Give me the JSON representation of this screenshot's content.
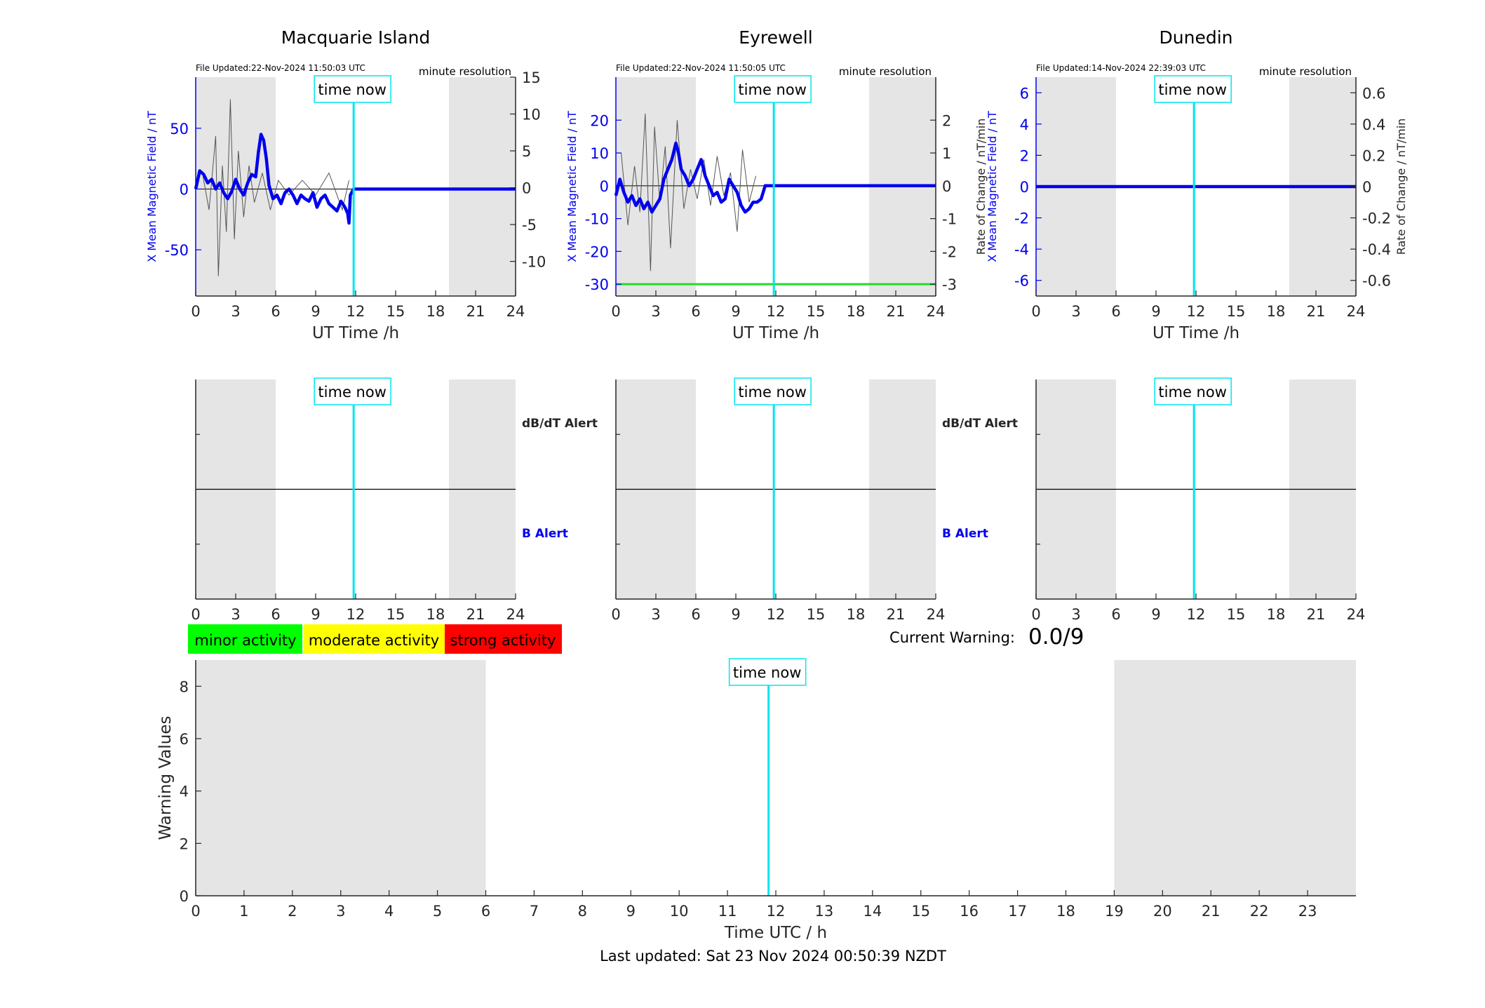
{
  "page": {
    "last_updated": "Last updated: Sat 23 Nov 2024 00:50:39 NZDT",
    "current_warning_label": "Current Warning:",
    "current_warning_value": "0.0/9"
  },
  "legend": {
    "minor": "minor activity",
    "moderate": "moderate activity",
    "strong": "strong activity",
    "colors": {
      "minor": "#00ff00",
      "moderate": "#ffff00",
      "strong": "#ff0000"
    }
  },
  "colors": {
    "field_trace": "#0000ee",
    "rate_trace": "#555555",
    "time_now": "#00e5ee",
    "threshold": "#22dd22",
    "night_shade": "#e5e5e5"
  },
  "chart_data": [
    {
      "id": "macquarie",
      "type": "line",
      "title": "Macquarie Island",
      "file_updated": "File Updated:22-Nov-2024 11:50:03 UTC",
      "resolution": "minute resolution",
      "xlabel": "UT Time /h",
      "ylabel_left": "X Mean Magnetic Field / nT",
      "ylabel_right": "",
      "xlim": [
        0,
        24
      ],
      "xticks": [
        "0",
        "3",
        "6",
        "9",
        "12",
        "15",
        "18",
        "21",
        "24"
      ],
      "ylim_left": [
        -88,
        92
      ],
      "yticks_left": [
        "-50",
        "0",
        "50"
      ],
      "ylim_right": [
        -14.7,
        15
      ],
      "yticks_right": [
        "-10",
        "-5",
        "0",
        "5",
        "10",
        "15"
      ],
      "shaded": [
        [
          0,
          6
        ],
        [
          19,
          24
        ]
      ],
      "time_now": 11.85,
      "time_now_label": "time now",
      "field": {
        "x": [
          0,
          0.3,
          0.6,
          0.9,
          1.2,
          1.5,
          1.8,
          2.1,
          2.4,
          2.7,
          3.0,
          3.3,
          3.6,
          3.9,
          4.2,
          4.5,
          4.7,
          4.9,
          5.1,
          5.3,
          5.5,
          5.8,
          6.1,
          6.4,
          6.7,
          7.0,
          7.3,
          7.6,
          7.9,
          8.2,
          8.5,
          8.8,
          9.1,
          9.4,
          9.7,
          10.0,
          10.3,
          10.6,
          10.9,
          11.2,
          11.4,
          11.5,
          11.6,
          11.85,
          14,
          18,
          21,
          24
        ],
        "y": [
          0,
          15,
          12,
          5,
          8,
          0,
          5,
          -3,
          -8,
          -2,
          8,
          0,
          -5,
          5,
          12,
          10,
          30,
          45,
          40,
          25,
          3,
          -8,
          -5,
          -12,
          -3,
          0,
          -5,
          -12,
          -5,
          -8,
          -10,
          -3,
          -15,
          -8,
          -5,
          -12,
          -15,
          -18,
          -10,
          -15,
          -20,
          -28,
          -5,
          0,
          0,
          0,
          0,
          0
        ]
      },
      "rate": {
        "x": [
          0.5,
          1.0,
          1.5,
          1.7,
          2.0,
          2.3,
          2.6,
          2.9,
          3.2,
          3.6,
          4.0,
          4.4,
          5.0,
          5.6,
          6.2,
          7.0,
          8.0,
          9.0,
          10.0,
          11.0,
          11.5
        ],
        "y": [
          2,
          -3,
          7,
          -12,
          3,
          -6,
          12,
          -7,
          5,
          -4,
          3,
          -2,
          2,
          -3,
          1,
          -1,
          1,
          -1,
          2,
          -3,
          1
        ]
      }
    },
    {
      "id": "eyrewell",
      "type": "line",
      "title": "Eyrewell",
      "file_updated": "File Updated:22-Nov-2024 11:50:05 UTC",
      "resolution": "minute resolution",
      "xlabel": "UT Time /h",
      "ylabel_left": "X Mean Magnetic Field / nT",
      "ylabel_right": "Rate of Change / nT/min",
      "xlim": [
        0,
        24
      ],
      "xticks": [
        "0",
        "3",
        "6",
        "9",
        "12",
        "15",
        "18",
        "21",
        "24"
      ],
      "ylim_left": [
        -33.6,
        33.1
      ],
      "yticks_left": [
        "-30",
        "-20",
        "-10",
        "0",
        "10",
        "20"
      ],
      "ylim_right": [
        -3.36,
        3.31
      ],
      "yticks_right": [
        "-3",
        "-2",
        "-1",
        "0",
        "1",
        "2"
      ],
      "shaded": [
        [
          0,
          6
        ],
        [
          19,
          24
        ]
      ],
      "time_now": 11.85,
      "time_now_label": "time now",
      "threshold": -30,
      "field": {
        "x": [
          0,
          0.3,
          0.6,
          0.9,
          1.2,
          1.5,
          1.8,
          2.1,
          2.4,
          2.7,
          3.0,
          3.3,
          3.6,
          3.9,
          4.2,
          4.5,
          4.7,
          4.9,
          5.2,
          5.5,
          5.8,
          6.1,
          6.4,
          6.7,
          7.0,
          7.3,
          7.6,
          7.9,
          8.2,
          8.5,
          8.8,
          9.1,
          9.4,
          9.7,
          10.0,
          10.3,
          10.6,
          10.9,
          11.2,
          11.85,
          14,
          18,
          21,
          24
        ],
        "y": [
          -3,
          2,
          -2,
          -5,
          -3,
          -6,
          -4,
          -7,
          -5,
          -8,
          -6,
          -4,
          2,
          5,
          8,
          13,
          10,
          5,
          3,
          0,
          2,
          5,
          8,
          3,
          0,
          -3,
          -2,
          -5,
          -4,
          2,
          0,
          -2,
          -6,
          -8,
          -7,
          -5,
          -5,
          -4,
          0,
          0,
          0,
          0,
          0,
          0
        ]
      },
      "rate": {
        "x": [
          0.4,
          0.9,
          1.4,
          1.8,
          2.2,
          2.6,
          2.9,
          3.3,
          3.7,
          4.1,
          4.6,
          5.1,
          5.6,
          6.1,
          6.6,
          7.1,
          7.6,
          8.1,
          8.6,
          9.1,
          9.5,
          10.0,
          10.5
        ],
        "y": [
          1.0,
          -1.2,
          0.6,
          -0.8,
          2.2,
          -2.6,
          1.8,
          -0.5,
          1.2,
          -1.9,
          2.0,
          -0.7,
          0.5,
          -0.4,
          0.8,
          -0.6,
          0.9,
          -0.3,
          0.4,
          -1.4,
          1.1,
          -0.5,
          0.3
        ]
      }
    },
    {
      "id": "dunedin",
      "type": "line",
      "title": "Dunedin",
      "file_updated": "File Updated:14-Nov-2024 22:39:03 UTC",
      "resolution": "minute resolution",
      "xlabel": "UT Time /h",
      "ylabel_left": "X Mean Magnetic Field / nT",
      "ylabel_right": "Rate of Change / nT/min",
      "xlim": [
        0,
        24
      ],
      "xticks": [
        "0",
        "3",
        "6",
        "9",
        "12",
        "15",
        "18",
        "21",
        "24"
      ],
      "ylim_left": [
        -7,
        7
      ],
      "yticks_left": [
        "-6",
        "-4",
        "-2",
        "0",
        "2",
        "4",
        "6"
      ],
      "ylim_right": [
        -0.7,
        0.7
      ],
      "yticks_right": [
        "-0.6",
        "-0.4",
        "-0.2",
        "0",
        "0.2",
        "0.4",
        "0.6"
      ],
      "shaded": [
        [
          0,
          6
        ],
        [
          19,
          24
        ]
      ],
      "time_now": 11.85,
      "time_now_label": "time now",
      "field": {
        "x": [
          0,
          24
        ],
        "y": [
          0,
          0
        ]
      },
      "rate": {
        "x": [],
        "y": []
      }
    },
    {
      "id": "alerts",
      "type": "line",
      "panels": [
        "macquarie",
        "eyrewell",
        "dunedin"
      ],
      "xlim": [
        0,
        24
      ],
      "xticks": [
        "0",
        "3",
        "6",
        "9",
        "12",
        "15",
        "18",
        "21",
        "24"
      ],
      "shaded": [
        [
          0,
          6
        ],
        [
          19,
          24
        ]
      ],
      "time_now": 11.85,
      "time_now_label": "time now",
      "upper_label": "dB/dT Alert",
      "lower_label": "B Alert"
    },
    {
      "id": "warning",
      "type": "bar",
      "xlabel": "Time UTC / h",
      "ylabel": "Warning Values",
      "xlim": [
        0,
        24
      ],
      "xticks": [
        "0",
        "1",
        "2",
        "3",
        "4",
        "5",
        "6",
        "7",
        "8",
        "9",
        "10",
        "11",
        "12",
        "13",
        "14",
        "15",
        "16",
        "17",
        "18",
        "19",
        "20",
        "21",
        "22",
        "23"
      ],
      "ylim": [
        0,
        9
      ],
      "yticks": [
        "0",
        "2",
        "4",
        "6",
        "8"
      ],
      "shaded": [
        [
          0,
          6
        ],
        [
          19,
          24
        ]
      ],
      "time_now": 11.85,
      "time_now_label": "time now",
      "values": []
    }
  ]
}
